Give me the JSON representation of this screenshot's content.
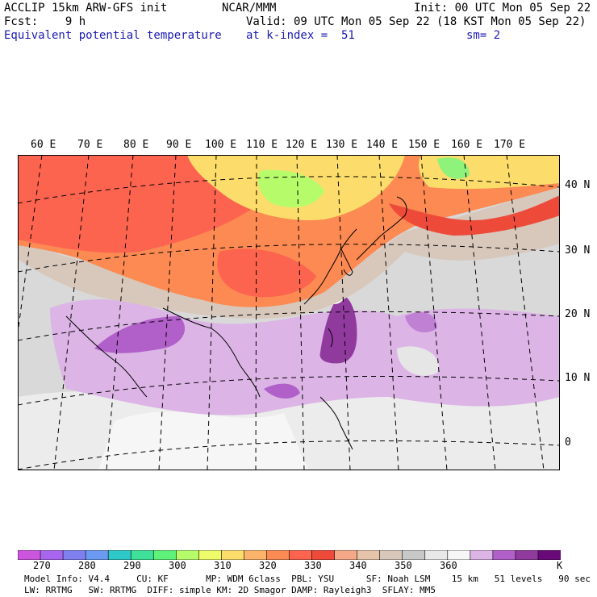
{
  "header": {
    "line1_left": "ACCLIP 15km ARW-GFS init",
    "line1_center": "NCAR/MMM",
    "line1_right": "Init: 00 UTC Mon 05 Sep 22",
    "line2_left": "Fcst:    9 h",
    "line2_right": "Valid: 09 UTC Mon 05 Sep 22 (18 KST Mon 05 Sep 22)",
    "line3_left": "Equivalent potential temperature",
    "line3_center": "at k-index =  51",
    "line3_right": "sm= 2"
  },
  "map": {
    "lon_labels": [
      "60 E",
      "70 E",
      "80 E",
      "90 E",
      "100 E",
      "110 E",
      "120 E",
      "130 E",
      "140 E",
      "150 E",
      "160 E",
      "170 E"
    ],
    "lat_labels": [
      "40 N",
      "30 N",
      "20 N",
      "10 N",
      "0"
    ]
  },
  "colorbar": {
    "colors": [
      "#cc55dd",
      "#a866ee",
      "#7f7ff0",
      "#6a9af2",
      "#2ec8c8",
      "#3fe09a",
      "#5ff27a",
      "#b6fc6a",
      "#eefc6a",
      "#fcdc6a",
      "#fcb46a",
      "#fc8a52",
      "#fc6450",
      "#ee4a3a",
      "#f4a888",
      "#e6c4aa",
      "#d8c8bc",
      "#c8c8c8",
      "#e8e8e8",
      "#f6f6f6",
      "#dcb4e6",
      "#b060c8",
      "#903a9e",
      "#6a0a7a"
    ],
    "tick_labels": [
      "270",
      "280",
      "290",
      "300",
      "310",
      "320",
      "330",
      "340",
      "350",
      "360"
    ],
    "unit": "K"
  },
  "model_info": {
    "line1": "Model Info: V4.4     CU: KF       MP: WDM 6class  PBL: YSU      SF: Noah LSM    15 km   51 levels   90 sec",
    "line2": "LW: RRTMG   SW: RRTMG  DIFF: simple KM: 2D Smagor DAMP: Rayleigh3  SFLAY: MM5"
  }
}
